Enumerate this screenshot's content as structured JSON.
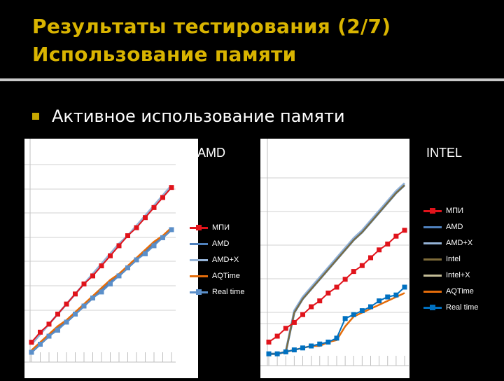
{
  "title": {
    "line1": "Результаты тестирования (2/7)",
    "line2": "Использование памяти"
  },
  "bullet": "Активное использование памяти",
  "colors": {
    "title": "#d9b400",
    "bullet": "#c8a800",
    "mpi": "#e0131b",
    "amd": "#4f81bd",
    "amdx": "#95b3d7",
    "intel": "#7f6c3a",
    "intelx": "#c4bd97",
    "aqtime": "#e46c0a",
    "realtime_amd": "#5b8fc9",
    "realtime_intel": "#0070c0"
  },
  "chart_data": [
    {
      "type": "line",
      "title": "AMD",
      "x": [
        0,
        1,
        2,
        3,
        4,
        5,
        6,
        7,
        8,
        9,
        10,
        11,
        12,
        13,
        14,
        15,
        16
      ],
      "ylim": [
        0,
        100
      ],
      "grid": true,
      "legend_position": "right",
      "series": [
        {
          "name": "МПИ",
          "values": [
            5,
            10,
            14,
            19,
            24,
            29,
            34,
            38,
            43,
            48,
            53,
            58,
            62,
            67,
            72,
            77,
            82
          ]
        },
        {
          "name": "AMD",
          "values": [
            0,
            4,
            8,
            12,
            15,
            19,
            23,
            27,
            31,
            35,
            38,
            42,
            46,
            50,
            54,
            57,
            61
          ]
        },
        {
          "name": "AMD+X",
          "values": [
            4,
            9,
            14,
            19,
            24,
            29,
            34,
            39,
            44,
            49,
            54,
            58,
            63,
            68,
            73,
            78,
            83
          ]
        },
        {
          "name": "AQTime",
          "values": [
            1,
            5,
            9,
            13,
            16,
            20,
            24,
            28,
            32,
            36,
            39,
            43,
            47,
            51,
            55,
            58,
            62
          ]
        },
        {
          "name": "Real time",
          "values": [
            0,
            4,
            8,
            11,
            15,
            19,
            23,
            27,
            30,
            34,
            38,
            42,
            46,
            49,
            53,
            57,
            61
          ]
        }
      ]
    },
    {
      "type": "line",
      "title": "INTEL",
      "x": [
        0,
        1,
        2,
        3,
        4,
        5,
        6,
        7,
        8,
        9,
        10,
        11,
        12,
        13,
        14,
        15,
        16
      ],
      "ylim": [
        0,
        100
      ],
      "grid": true,
      "legend_position": "right",
      "series": [
        {
          "name": "МПИ",
          "values": [
            7,
            10,
            14,
            17,
            21,
            25,
            28,
            32,
            35,
            39,
            43,
            46,
            50,
            54,
            57,
            61,
            64
          ]
        },
        {
          "name": "AMD",
          "values": [
            1,
            1,
            2,
            22,
            29,
            34,
            39,
            44,
            49,
            54,
            59,
            63,
            68,
            73,
            78,
            83,
            87
          ]
        },
        {
          "name": "AMD+X",
          "values": [
            1,
            1,
            2,
            23,
            30,
            35,
            40,
            45,
            50,
            55,
            60,
            64,
            69,
            74,
            79,
            84,
            88
          ]
        },
        {
          "name": "Intel",
          "values": [
            1,
            1,
            2,
            22,
            29,
            34,
            39,
            44,
            49,
            54,
            59,
            63,
            68,
            73,
            78,
            83,
            87
          ]
        },
        {
          "name": "Intel+X",
          "values": [
            1,
            1,
            2,
            22,
            29,
            34,
            39,
            44,
            49,
            54,
            59,
            63,
            68,
            73,
            78,
            83,
            87
          ]
        },
        {
          "name": "AQTime",
          "values": [
            1,
            1,
            2,
            3,
            4,
            5,
            5,
            7,
            8,
            15,
            20,
            22,
            24,
            26,
            28,
            30,
            32
          ]
        },
        {
          "name": "Real time",
          "values": [
            1,
            1,
            2,
            3,
            4,
            5,
            6,
            7,
            9,
            19,
            21,
            23,
            25,
            28,
            30,
            31,
            35
          ]
        }
      ]
    }
  ]
}
